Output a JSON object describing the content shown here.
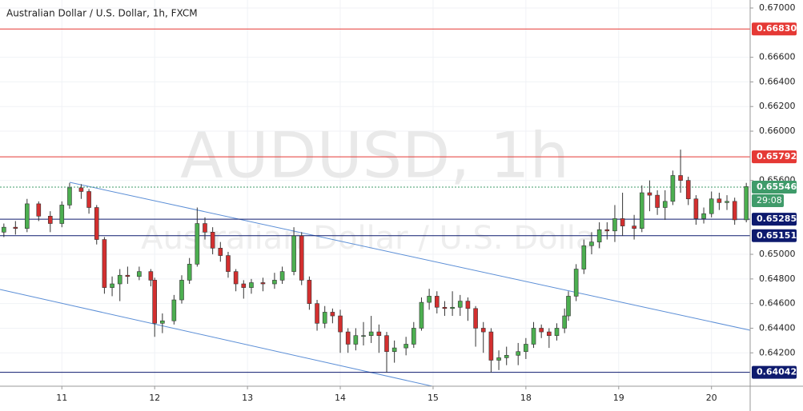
{
  "chart_data": {
    "type": "candlestick",
    "title": "Australian Dollar / U.S. Dollar, 1h, FXCM",
    "watermark": "AUDUSD, 1h",
    "watermark_subtitle": "Australian Dollar / U.S. Dollar",
    "x": [
      1,
      4,
      7,
      10,
      13,
      16,
      18,
      21,
      23,
      25,
      27,
      29,
      31,
      33,
      36,
      39,
      40,
      42,
      45,
      47,
      49,
      51,
      53,
      55,
      57,
      59,
      61,
      63,
      65,
      68,
      71,
      73,
      76,
      78,
      80,
      82,
      84,
      86,
      88,
      90,
      92,
      94,
      96,
      98,
      100,
      102,
      105,
      107,
      109,
      111,
      113,
      115,
      117,
      119,
      121,
      123,
      125,
      127,
      129,
      131,
      134,
      136,
      138,
      140,
      142,
      144,
      146,
      147,
      149,
      151,
      153,
      155,
      157,
      159,
      161,
      164,
      166,
      168,
      170,
      172,
      174,
      176,
      178,
      180,
      182,
      184,
      186,
      188,
      190,
      193
    ],
    "open": [
      0.6518,
      0.6522,
      0.6521,
      0.6541,
      0.6531,
      0.6525,
      0.654,
      0.6554,
      0.6551,
      0.6538,
      0.6512,
      0.6473,
      0.6476,
      0.6483,
      0.6482,
      0.6486,
      0.6479,
      0.6444,
      0.6446,
      0.6463,
      0.6479,
      0.6492,
      0.6525,
      0.6518,
      0.6505,
      0.6499,
      0.6486,
      0.6476,
      0.6473,
      0.6477,
      0.6476,
      0.6479,
      0.6486,
      0.6515,
      0.6479,
      0.646,
      0.6444,
      0.6453,
      0.645,
      0.6437,
      0.6427,
      0.6434,
      0.6434,
      0.6437,
      0.6434,
      0.6421,
      0.6424,
      0.6427,
      0.644,
      0.6461,
      0.6466,
      0.6457,
      0.6456,
      0.6457,
      0.6462,
      0.6456,
      0.644,
      0.6437,
      0.6414,
      0.6416,
      0.6418,
      0.6421,
      0.6427,
      0.644,
      0.6437,
      0.6434,
      0.644,
      0.645,
      0.6466,
      0.6488,
      0.6507,
      0.651,
      0.652,
      0.6519,
      0.6529,
      0.6523,
      0.6521,
      0.655,
      0.6548,
      0.6538,
      0.6543,
      0.6564,
      0.656,
      0.6545,
      0.6529,
      0.6533,
      0.6545,
      0.6542,
      0.6543,
      0.6528
    ],
    "high": [
      0.6525,
      0.6527,
      0.6545,
      0.6543,
      0.6535,
      0.6543,
      0.6558,
      0.6557,
      0.6553,
      0.654,
      0.6514,
      0.6482,
      0.6488,
      0.649,
      0.649,
      0.6488,
      0.6481,
      0.6452,
      0.6467,
      0.6483,
      0.6497,
      0.6538,
      0.653,
      0.6522,
      0.651,
      0.6502,
      0.6488,
      0.6479,
      0.648,
      0.6481,
      0.6485,
      0.649,
      0.6522,
      0.6518,
      0.6482,
      0.6463,
      0.6458,
      0.6456,
      0.6455,
      0.644,
      0.644,
      0.6445,
      0.645,
      0.6443,
      0.6437,
      0.643,
      0.6433,
      0.6445,
      0.6465,
      0.6472,
      0.647,
      0.6462,
      0.647,
      0.6467,
      0.6465,
      0.6458,
      0.6445,
      0.644,
      0.6422,
      0.6425,
      0.6428,
      0.6432,
      0.6445,
      0.6443,
      0.644,
      0.6444,
      0.6456,
      0.647,
      0.6492,
      0.6512,
      0.6518,
      0.6526,
      0.6526,
      0.654,
      0.655,
      0.6532,
      0.6556,
      0.656,
      0.6552,
      0.6552,
      0.6568,
      0.6585,
      0.6563,
      0.6548,
      0.6538,
      0.6551,
      0.655,
      0.6548,
      0.6546,
      0.6558
    ],
    "low": [
      0.6514,
      0.6516,
      0.6518,
      0.6527,
      0.6518,
      0.6522,
      0.6537,
      0.6545,
      0.6533,
      0.6508,
      0.6468,
      0.6466,
      0.6462,
      0.6476,
      0.6479,
      0.6474,
      0.6433,
      0.6436,
      0.6443,
      0.646,
      0.6476,
      0.649,
      0.6512,
      0.65,
      0.6494,
      0.6481,
      0.647,
      0.6464,
      0.6468,
      0.647,
      0.6472,
      0.6476,
      0.6483,
      0.6475,
      0.6455,
      0.6438,
      0.644,
      0.6444,
      0.642,
      0.642,
      0.6422,
      0.6426,
      0.6428,
      0.642,
      0.6404,
      0.6412,
      0.6418,
      0.6424,
      0.6438,
      0.6455,
      0.6452,
      0.645,
      0.645,
      0.645,
      0.6446,
      0.6425,
      0.642,
      0.6404,
      0.6406,
      0.641,
      0.641,
      0.6415,
      0.6424,
      0.6432,
      0.6424,
      0.643,
      0.6436,
      0.6446,
      0.6462,
      0.6484,
      0.65,
      0.6505,
      0.6512,
      0.651,
      0.6515,
      0.6512,
      0.6518,
      0.6535,
      0.6532,
      0.6528,
      0.654,
      0.655,
      0.654,
      0.6524,
      0.6525,
      0.653,
      0.6536,
      0.6536,
      0.6524,
      0.6526
    ],
    "close": [
      0.6522,
      0.6521,
      0.6541,
      0.6531,
      0.6525,
      0.654,
      0.6554,
      0.6551,
      0.6538,
      0.6512,
      0.6473,
      0.6476,
      0.6483,
      0.6482,
      0.6486,
      0.6479,
      0.6444,
      0.6446,
      0.6463,
      0.6479,
      0.6492,
      0.6525,
      0.6518,
      0.6505,
      0.6499,
      0.6486,
      0.6476,
      0.6473,
      0.6477,
      0.6476,
      0.6479,
      0.6486,
      0.6515,
      0.6479,
      0.646,
      0.6444,
      0.6453,
      0.645,
      0.6437,
      0.6427,
      0.6434,
      0.6434,
      0.6437,
      0.6434,
      0.6421,
      0.6424,
      0.6427,
      0.644,
      0.6461,
      0.6466,
      0.6457,
      0.6456,
      0.6457,
      0.6462,
      0.6456,
      0.644,
      0.6437,
      0.6414,
      0.6416,
      0.6418,
      0.6421,
      0.6427,
      0.644,
      0.6437,
      0.6434,
      0.644,
      0.645,
      0.6466,
      0.6488,
      0.6507,
      0.651,
      0.652,
      0.6519,
      0.6529,
      0.6523,
      0.6521,
      0.655,
      0.6548,
      0.6538,
      0.6543,
      0.6564,
      0.656,
      0.6545,
      0.6529,
      0.6533,
      0.6545,
      0.6542,
      0.6543,
      0.6528,
      0.6555
    ],
    "up_color": "#4caf50",
    "down_color": "#d32f2f",
    "wick_color": "#333333",
    "xlim": [
      0,
      194
    ],
    "xticks": [
      {
        "value": 16,
        "label": "11"
      },
      {
        "value": 40,
        "label": "12"
      },
      {
        "value": 64,
        "label": "13"
      },
      {
        "value": 88,
        "label": "14"
      },
      {
        "value": 112,
        "label": "15"
      },
      {
        "value": 136,
        "label": "18"
      },
      {
        "value": 160,
        "label": "19"
      },
      {
        "value": 184,
        "label": "20"
      }
    ],
    "ylim": [
      0.63929,
      0.67065
    ],
    "yticks": [
      {
        "value": 0.67,
        "label": "0.67000"
      },
      {
        "value": 0.666,
        "label": "0.66600"
      },
      {
        "value": 0.664,
        "label": "0.66400"
      },
      {
        "value": 0.662,
        "label": "0.66200"
      },
      {
        "value": 0.66,
        "label": "0.66000"
      },
      {
        "value": 0.656,
        "label": "0.65600"
      },
      {
        "value": 0.65,
        "label": "0.65000"
      },
      {
        "value": 0.648,
        "label": "0.64800"
      },
      {
        "value": 0.646,
        "label": "0.64600"
      },
      {
        "value": 0.644,
        "label": "0.64400"
      },
      {
        "value": 0.642,
        "label": "0.64200"
      }
    ],
    "grid": true,
    "levels": [
      {
        "value": 0.6683,
        "label": "0.66830",
        "color": "#e53935"
      },
      {
        "value": 0.65792,
        "label": "0.65792",
        "color": "#e53935"
      },
      {
        "value": 0.65285,
        "label": "0.65285",
        "color": "#0d1a6e"
      },
      {
        "value": 0.65151,
        "label": "0.65151",
        "color": "#0d1a6e"
      },
      {
        "value": 0.64042,
        "label": "0.64042",
        "color": "#0d1a6e"
      }
    ],
    "last_price": {
      "value": 0.65546,
      "label": "0.65546",
      "color": "#3f9b6a"
    },
    "countdown": "29:08"
  }
}
